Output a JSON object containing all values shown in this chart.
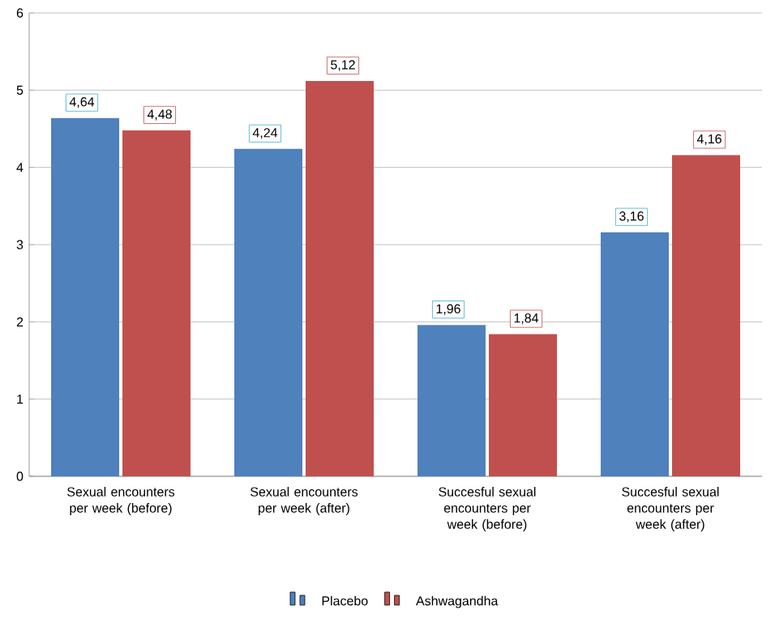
{
  "chart_data": {
    "type": "bar",
    "categories": [
      "Sexual encounters per week (before)",
      "Sexual encounters per week (after)",
      "Succesful sexual encounters per week (before)",
      "Succesful sexual encounters per week (after)"
    ],
    "series": [
      {
        "name": "Placebo",
        "color": "#4f81bd",
        "values": [
          4.64,
          4.24,
          1.96,
          3.16
        ],
        "value_labels": [
          "4,64",
          "4,24",
          "1,96",
          "3,16"
        ]
      },
      {
        "name": "Ashwagandha",
        "color": "#c0504d",
        "values": [
          4.48,
          5.12,
          1.84,
          4.16
        ],
        "value_labels": [
          "4,48",
          "5,12",
          "1,84",
          "4,16"
        ]
      }
    ],
    "ylim": [
      0,
      6
    ],
    "yticks": [
      0,
      1,
      2,
      3,
      4,
      5,
      6
    ],
    "grid": "y",
    "legend": "bottom"
  }
}
